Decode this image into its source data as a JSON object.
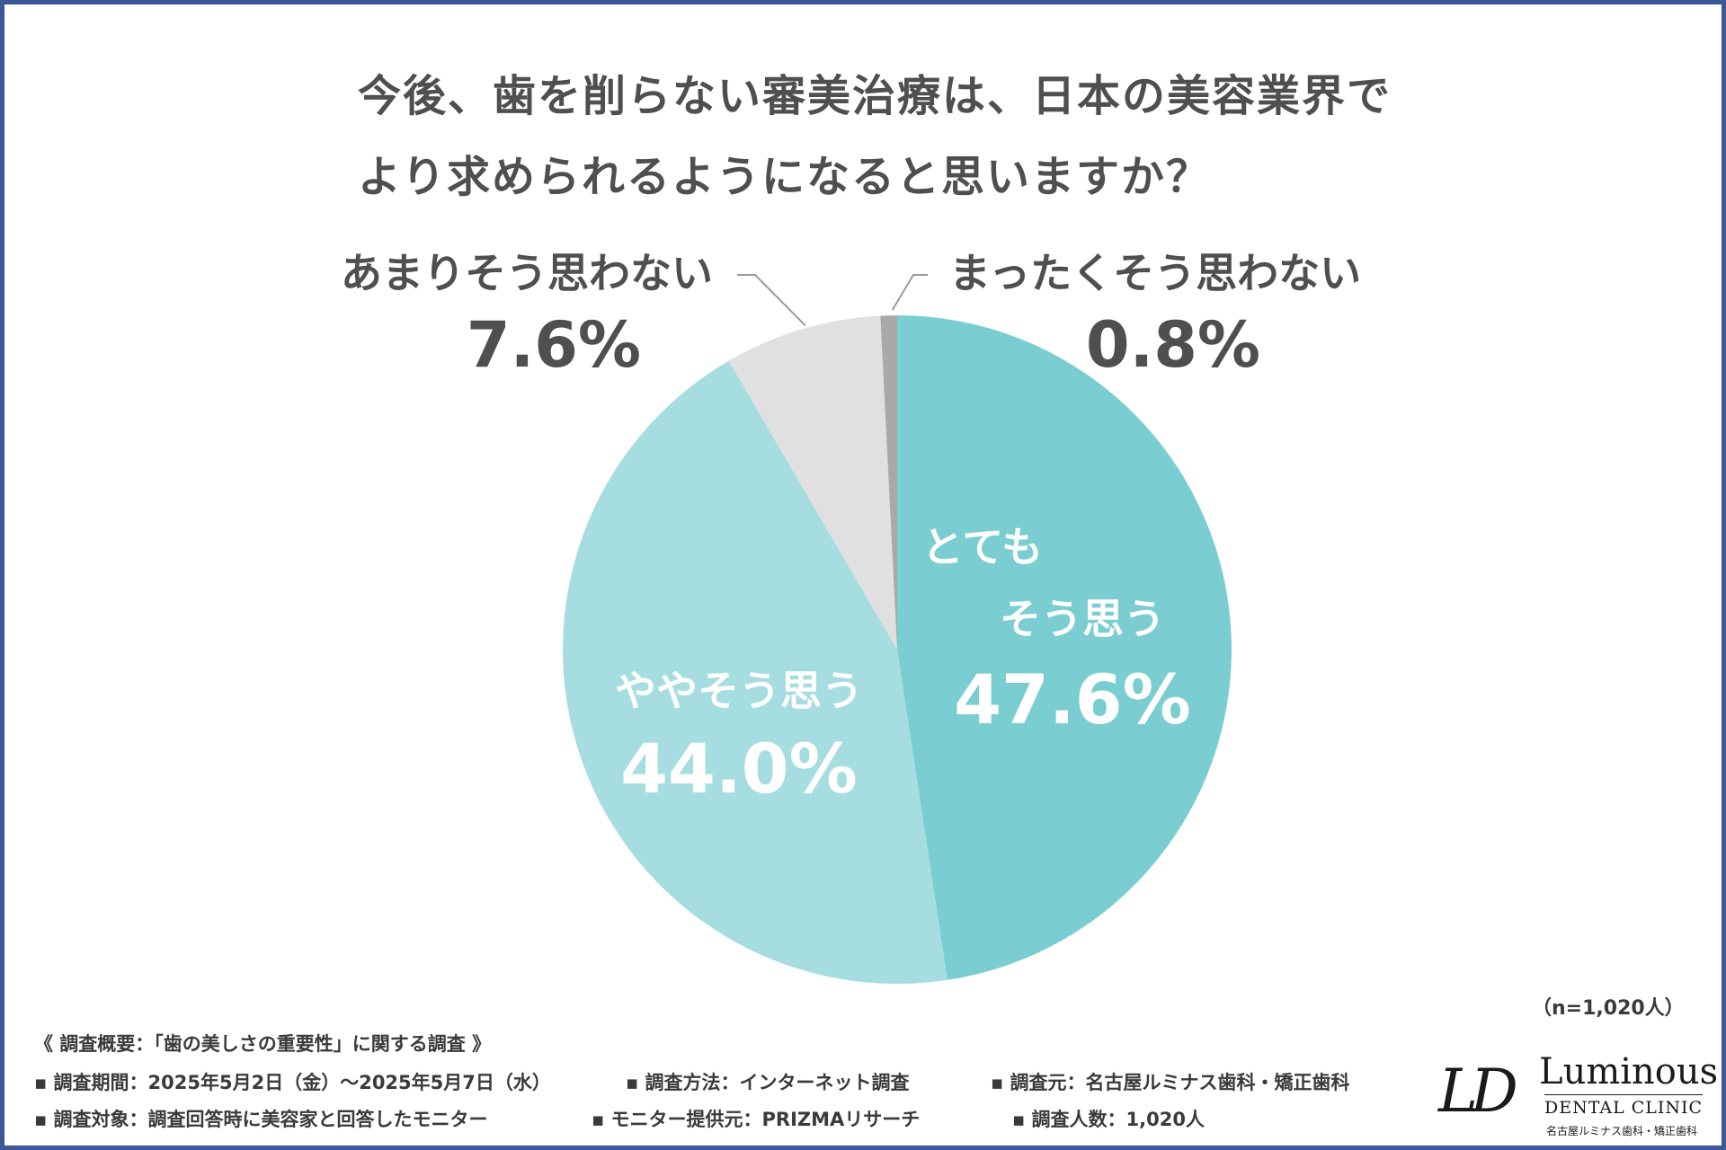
{
  "title": {
    "line1": "今後、歯を削らない審美治療は、日本の美容業界で",
    "line2": "より求められるようになると思いますか？"
  },
  "chart_data": {
    "type": "pie",
    "title": "今後、歯を削らない審美治療は、日本の美容業界でより求められるようになると思いますか？",
    "slices": [
      {
        "label": "とてもそう思う",
        "label_lines": [
          "とても",
          "そう思う"
        ],
        "value": 47.6,
        "value_text": "47.6%",
        "color": "#7acdd0"
      },
      {
        "label": "ややそう思う",
        "label_lines": [
          "ややそう思う"
        ],
        "value": 44.0,
        "value_text": "44.0%",
        "color": "#a6dde0"
      },
      {
        "label": "あまりそう思わない",
        "label_lines": [
          "あまりそう思わない"
        ],
        "value": 7.6,
        "value_text": "7.6%",
        "color": "#e0e0e0"
      },
      {
        "label": "まったくそう思わない",
        "label_lines": [
          "まったくそう思わない"
        ],
        "value": 0.8,
        "value_text": "0.8%",
        "color": "#a9a9a9"
      }
    ],
    "start": "top",
    "direction": "clockwise",
    "sample_size": "（n=1,020人）"
  },
  "survey": {
    "heading": "《 調査概要：「歯の美しさの重要性」に関する調査 》",
    "period": "▪ 調査期間：2025年5月2日（金）～2025年5月7日（水）",
    "method": "▪ 調査方法：インターネット調査",
    "source": "▪ 調査元：名古屋ルミナス歯科・矯正歯科",
    "target": "▪ 調査対象：調査回答時に美容家と回答したモニター",
    "provider": "▪ モニター提供元：PRIZMAリサーチ",
    "count": "▪ 調査人数：1,020人"
  },
  "logo": {
    "mark": "LD",
    "name": "Luminous",
    "sub": "DENTAL CLINIC",
    "jp": "名古屋ルミナス歯科・矯正歯科"
  },
  "colors": {
    "frame": "#3b5998",
    "text": "#4f4f4f",
    "label_on_slice": "#ffffff"
  }
}
